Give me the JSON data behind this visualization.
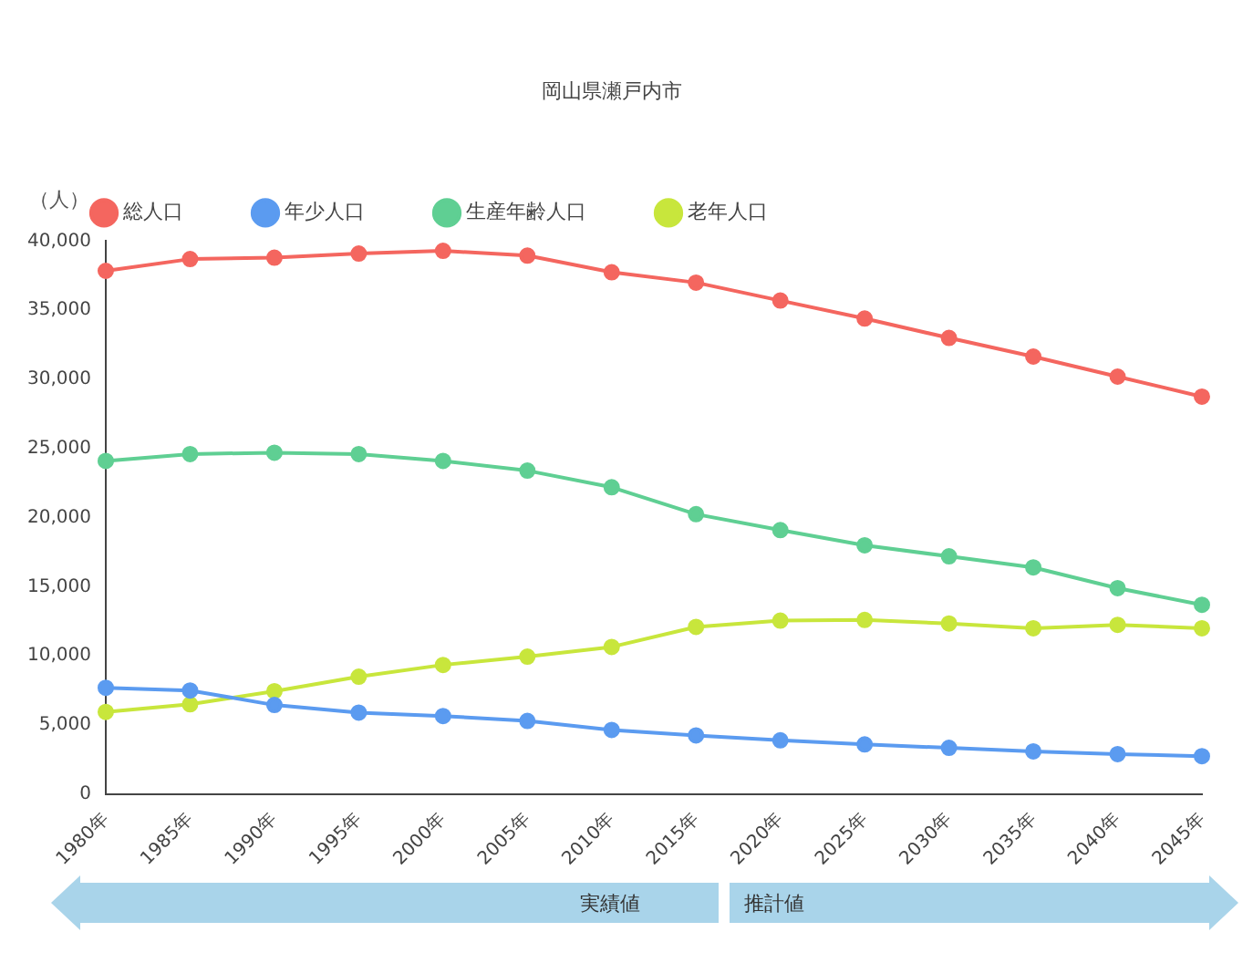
{
  "chart_data": {
    "type": "line",
    "title": "岡山県瀬戸内市",
    "ylabel": "（人）",
    "categories": [
      "1980年",
      "1985年",
      "1990年",
      "1995年",
      "2000年",
      "2005年",
      "2010年",
      "2015年",
      "2020年",
      "2025年",
      "2030年",
      "2035年",
      "2040年",
      "2045年"
    ],
    "series": [
      {
        "name": "総人口",
        "color": "#f4665f",
        "values": [
          37850,
          38700,
          38800,
          39100,
          39300,
          38950,
          37750,
          37000,
          35700,
          34400,
          33000,
          31650,
          30200,
          28750
        ]
      },
      {
        "name": "年少人口",
        "color": "#5b9bf0",
        "values": [
          7700,
          7500,
          6450,
          5900,
          5650,
          5300,
          4650,
          4250,
          3900,
          3600,
          3350,
          3100,
          2900,
          2750
        ]
      },
      {
        "name": "生産年齢人口",
        "color": "#5fcf93",
        "values": [
          24100,
          24600,
          24700,
          24600,
          24100,
          23400,
          22200,
          20250,
          19100,
          18000,
          17200,
          16400,
          14900,
          13700
        ]
      },
      {
        "name": "老年人口",
        "color": "#c8e63c",
        "values": [
          5950,
          6500,
          7450,
          8500,
          9350,
          9950,
          10650,
          12100,
          12550,
          12600,
          12350,
          12000,
          12250,
          12000
        ]
      }
    ],
    "ylim": [
      0,
      40000
    ],
    "yticks": [
      0,
      {
        "value": 5000,
        "label": "5,000"
      },
      {
        "value": 10000,
        "label": "10,000"
      },
      {
        "value": 15000,
        "label": "15,000"
      },
      {
        "value": 20000,
        "label": "20,000"
      },
      {
        "value": 25000,
        "label": "25,000"
      },
      {
        "value": 30000,
        "label": "30,000"
      },
      {
        "value": 35000,
        "label": "35,000"
      },
      {
        "value": 40000,
        "label": "40,000"
      }
    ],
    "grid": false,
    "legend": "top",
    "marker": "circle",
    "line_style": "solid",
    "annotations": [
      "実績値",
      "推計値"
    ]
  }
}
